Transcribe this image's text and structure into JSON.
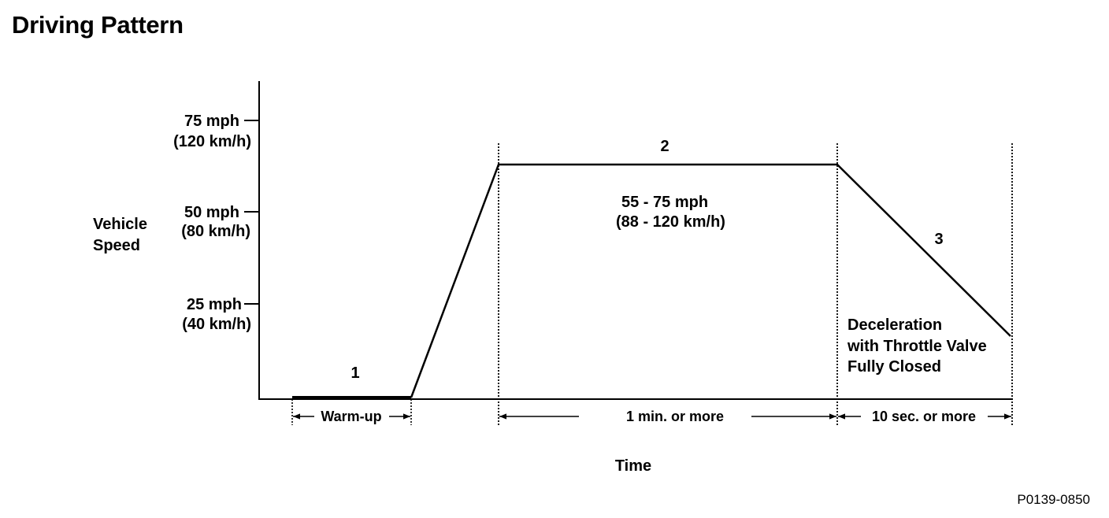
{
  "title": "Driving Pattern",
  "y_axis": {
    "label_line1": "Vehicle",
    "label_line2": "Speed",
    "ticks": [
      {
        "line1": "75 mph",
        "line2": "(120 km/h)"
      },
      {
        "line1": "50 mph",
        "line2": "(80 km/h)"
      },
      {
        "line1": "25 mph",
        "line2": "(40 km/h)"
      }
    ]
  },
  "x_axis": {
    "label": "Time"
  },
  "phases": [
    {
      "number": "1",
      "duration": "Warm-up"
    },
    {
      "number": "2",
      "duration": "1 min. or  more",
      "speed_line1": "55 - 75 mph",
      "speed_line2": "(88 - 120 km/h)"
    },
    {
      "number": "3",
      "duration": "10 sec. or  more",
      "note_line1": "Deceleration",
      "note_line2": "with Throttle Valve",
      "note_line3": "Fully Closed"
    }
  ],
  "figure_code": "P0139-0850"
}
